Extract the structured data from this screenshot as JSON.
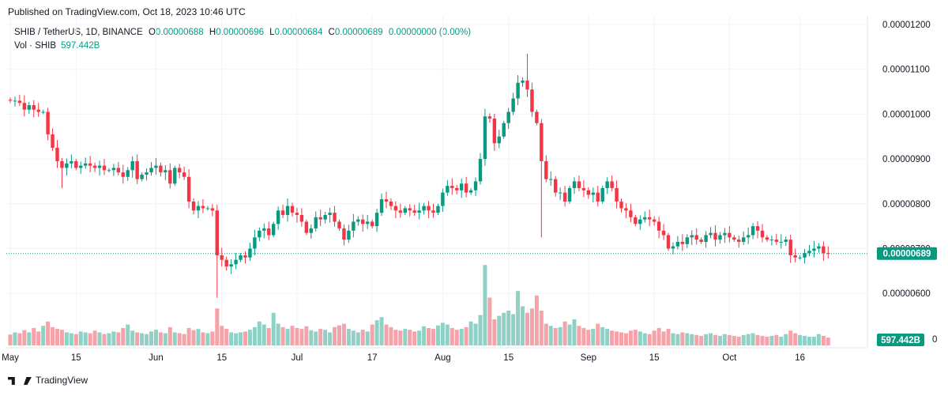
{
  "header": {
    "published": "Published on TradingView.com, Oct 18, 2023 10:46 UTC"
  },
  "legend": {
    "symbol": "SHIB / TetherUS, 1D, BINANCE",
    "o_label": "O",
    "o_value": "0.00000688",
    "h_label": "H",
    "h_value": "0.00000696",
    "l_label": "L",
    "l_value": "0.00000684",
    "c_label": "C",
    "c_value": "0.00000689",
    "change": "0.00000000 (0.00%)",
    "vol_label": "Vol · SHIB",
    "vol_value": "597.442B"
  },
  "footer": {
    "brand": "TradingView"
  },
  "colors": {
    "up": "#089981",
    "down": "#F23645",
    "up_vol": "#8fd1c5",
    "down_vol": "#f5a3aa",
    "grid": "#f0f3fa",
    "last": "#089981"
  },
  "chart_data": {
    "type": "candlestick",
    "yticks": [
      "0.00001200",
      "0.00001100",
      "0.00001000",
      "0.00000900",
      "0.00000800",
      "0.00000700",
      "0.00000600"
    ],
    "ylim": [
      5.55e-06,
      1.225e-05
    ],
    "xticks": [
      {
        "label": "May",
        "day": 0
      },
      {
        "label": "15",
        "day": 14
      },
      {
        "label": "Jun",
        "day": 31
      },
      {
        "label": "15",
        "day": 45
      },
      {
        "label": "Jul",
        "day": 61
      },
      {
        "label": "17",
        "day": 77
      },
      {
        "label": "Aug",
        "day": 92
      },
      {
        "label": "15",
        "day": 106
      },
      {
        "label": "Sep",
        "day": 123
      },
      {
        "label": "15",
        "day": 137
      },
      {
        "label": "Oct",
        "day": 153
      },
      {
        "label": "16",
        "day": 168
      }
    ],
    "last_price": "0.00000689",
    "last_volume": "597.442B",
    "volume_axis_label": "0",
    "close": [
      10.3,
      10.3,
      10.25,
      10.1,
      10.2,
      10.1,
      10.05,
      10.05,
      9.55,
      9.25,
      8.95,
      8.8,
      8.9,
      8.95,
      8.8,
      8.85,
      8.9,
      8.85,
      8.8,
      8.85,
      8.75,
      8.75,
      8.8,
      8.7,
      8.6,
      8.75,
      8.95,
      8.55,
      8.65,
      8.7,
      8.8,
      8.85,
      8.7,
      8.75,
      8.45,
      8.8,
      8.7,
      8.6,
      8.05,
      7.85,
      7.95,
      7.9,
      7.9,
      7.85,
      6.85,
      6.75,
      6.6,
      6.65,
      6.75,
      6.85,
      6.8,
      7.0,
      7.25,
      7.4,
      7.45,
      7.3,
      7.55,
      7.85,
      7.75,
      7.95,
      7.8,
      7.75,
      7.6,
      7.35,
      7.45,
      7.7,
      7.65,
      7.75,
      7.8,
      7.6,
      7.45,
      7.2,
      7.4,
      7.6,
      7.65,
      7.55,
      7.6,
      7.5,
      7.8,
      8.1,
      8.05,
      7.95,
      7.85,
      7.8,
      7.9,
      7.85,
      7.8,
      7.85,
      7.95,
      7.85,
      7.8,
      7.95,
      8.25,
      8.4,
      8.35,
      8.3,
      8.45,
      8.25,
      8.3,
      8.5,
      9.0,
      9.95,
      9.9,
      9.35,
      9.5,
      9.8,
      10.05,
      10.35,
      10.7,
      10.75,
      10.55,
      10.05,
      9.8,
      8.95,
      8.55,
      8.55,
      8.25,
      8.25,
      8.05,
      8.35,
      8.5,
      8.35,
      8.3,
      8.2,
      8.25,
      8.05,
      8.35,
      8.5,
      8.35,
      8.05,
      7.9,
      7.85,
      7.7,
      7.55,
      7.65,
      7.7,
      7.65,
      7.6,
      7.4,
      7.3,
      7.0,
      7.05,
      7.15,
      7.1,
      7.25,
      7.3,
      7.2,
      7.15,
      7.3,
      7.35,
      7.2,
      7.3,
      7.35,
      7.25,
      7.2,
      7.15,
      7.25,
      7.3,
      7.5,
      7.4,
      7.25,
      7.2,
      7.2,
      7.15,
      7.15,
      7.2,
      6.85,
      6.8,
      6.8,
      6.9,
      6.95,
      7.0,
      7.05,
      6.9,
      6.89
    ],
    "volume": [
      25,
      30,
      28,
      35,
      30,
      40,
      32,
      45,
      55,
      42,
      38,
      36,
      30,
      28,
      26,
      32,
      30,
      28,
      34,
      30,
      26,
      28,
      32,
      30,
      40,
      48,
      34,
      30,
      28,
      26,
      32,
      36,
      30,
      28,
      42,
      30,
      28,
      26,
      40,
      35,
      38,
      30,
      28,
      32,
      85,
      45,
      38,
      30,
      28,
      30,
      32,
      36,
      42,
      55,
      48,
      40,
      75,
      50,
      42,
      38,
      45,
      40,
      38,
      44,
      35,
      32,
      38,
      36,
      30,
      42,
      46,
      50,
      38,
      34,
      30,
      36,
      32,
      48,
      58,
      65,
      48,
      42,
      36,
      34,
      38,
      36,
      32,
      34,
      44,
      40,
      38,
      46,
      52,
      48,
      40,
      36,
      38,
      42,
      55,
      50,
      70,
      185,
      110,
      60,
      68,
      75,
      80,
      72,
      125,
      90,
      75,
      85,
      115,
      80,
      50,
      45,
      40,
      42,
      55,
      48,
      60,
      45,
      40,
      36,
      38,
      50,
      42,
      38,
      34,
      32,
      30,
      28,
      34,
      36,
      32,
      28,
      26,
      34,
      40,
      32,
      38,
      28,
      26,
      30,
      28,
      26,
      24,
      22,
      26,
      28,
      24,
      22,
      26,
      24,
      22,
      20,
      24,
      26,
      28,
      24,
      22,
      20,
      22,
      24,
      20,
      26,
      34,
      28,
      24,
      22,
      20,
      20,
      26,
      22,
      18
    ]
  }
}
